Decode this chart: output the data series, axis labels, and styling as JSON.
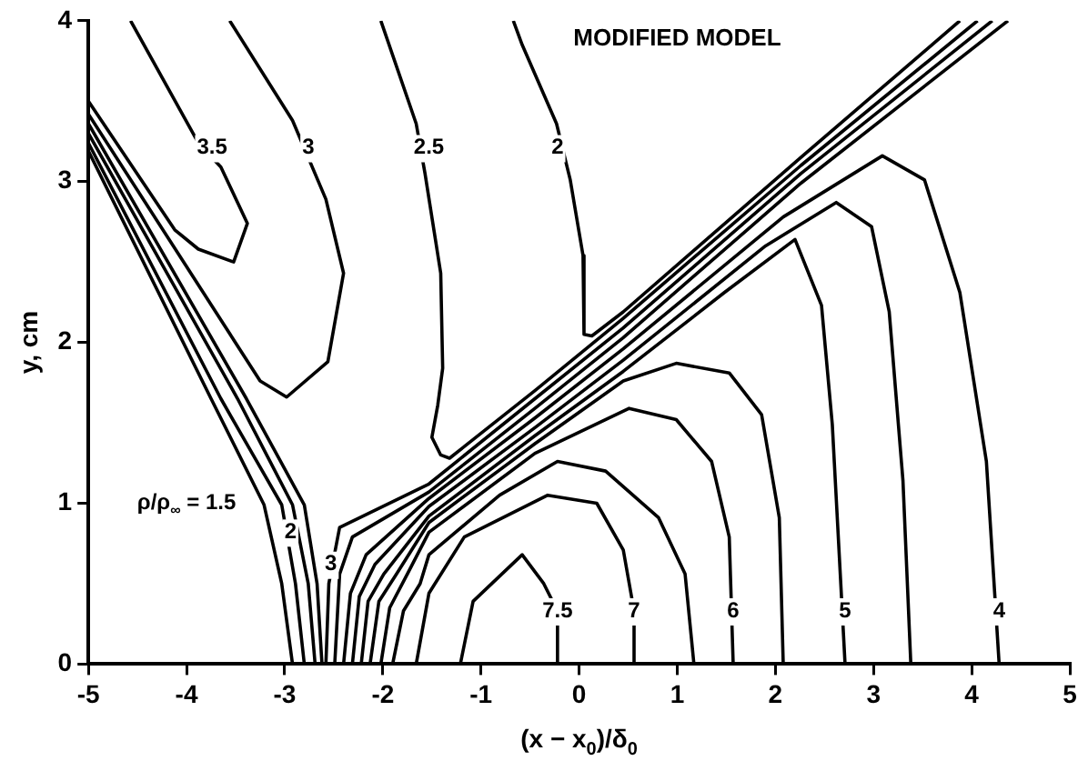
{
  "chart_data": {
    "type": "line",
    "title": "MODIFIED MODEL",
    "xlabel": "(x − x$_{0}$)/δ$_{0}$",
    "ylabel": "y, cm",
    "xlim": [
      -5,
      5
    ],
    "xticks": [
      -5,
      -4,
      -3,
      -2,
      -1,
      0,
      1,
      2,
      3,
      4,
      5
    ],
    "ylim": [
      0,
      4
    ],
    "yticks": [
      0,
      1,
      2,
      3,
      4
    ],
    "grid": false,
    "legend": false,
    "marker": "none",
    "line_style": "solid",
    "series": [
      {
        "color": "#000000",
        "x": [
          -5.0,
          -4.12,
          -3.88,
          -3.52,
          -3.38,
          -3.65,
          -3.88,
          -4.57
        ],
        "values": [
          3.5,
          2.7,
          2.58,
          2.5,
          2.74,
          3.09,
          3.24,
          4.0
        ]
      },
      {
        "color": "#000000",
        "x": [
          -5.0,
          -3.25,
          -2.98,
          -2.56,
          -2.4,
          -2.58,
          -2.92,
          -3.56
        ],
        "values": [
          3.42,
          1.76,
          1.66,
          1.88,
          2.43,
          2.89,
          3.38,
          4.0
        ]
      },
      {
        "color": "#000000",
        "x": [
          -5.0,
          -3.75,
          -3.21,
          -3.03,
          -2.92
        ],
        "values": [
          3.19,
          1.65,
          0.99,
          0.5,
          0
        ]
      },
      {
        "color": "#000000",
        "x": [
          -5.0,
          -3.65,
          -3.03,
          -2.89,
          -2.8
        ],
        "values": [
          3.24,
          1.65,
          0.99,
          0.5,
          0
        ]
      },
      {
        "color": "#000000",
        "x": [
          -5.0,
          -3.48,
          -2.92,
          -2.76,
          -2.69
        ],
        "values": [
          3.3,
          1.65,
          0.99,
          0.5,
          0
        ]
      },
      {
        "color": "#000000",
        "x": [
          -5.0,
          -3.39,
          -2.8,
          -2.67,
          -2.62
        ],
        "values": [
          3.36,
          1.65,
          0.99,
          0.5,
          0
        ]
      },
      {
        "color": "#000000",
        "x": [
          -2.02,
          -1.66,
          -1.57,
          -1.41,
          -1.39,
          -1.44,
          -1.5,
          -1.41,
          -1.32,
          -0.45,
          0.45,
          2.26,
          4.06
        ],
        "values": [
          4.0,
          3.36,
          3.05,
          2.43,
          1.84,
          1.61,
          1.41,
          1.3,
          1.28,
          1.7,
          2.15,
          3.1,
          4.0
        ]
      },
      {
        "color": "#000000",
        "x": [
          -0.67,
          -0.58,
          -0.23,
          -0.09,
          0.04,
          0.05,
          0.13,
          0.45,
          2.26,
          3.88
        ],
        "values": [
          4.0,
          3.85,
          3.36,
          3.01,
          2.54,
          2.05,
          2.04,
          2.19,
          3.15,
          4.0
        ]
      },
      {
        "color": "#000000",
        "x": [
          -2.58,
          -2.55,
          -2.44,
          -1.53,
          -0.45,
          0.45,
          2.26,
          4.21
        ],
        "values": [
          0,
          0.5,
          0.85,
          1.12,
          1.65,
          2.09,
          3.05,
          4.0
        ]
      },
      {
        "color": "#000000",
        "x": [
          -2.49,
          -2.44,
          -2.31,
          -1.53,
          -0.45,
          0.45,
          2.26,
          4.37
        ],
        "values": [
          0,
          0.56,
          0.79,
          1.07,
          1.59,
          2.03,
          2.99,
          4.0
        ]
      },
      {
        "color": "#000000",
        "x": [
          -2.4,
          -2.33,
          -2.17,
          -1.53,
          -0.45,
          0.45,
          2.08,
          3.09,
          3.52,
          3.88,
          4.15,
          4.28
        ],
        "values": [
          0,
          0.44,
          0.68,
          1.03,
          1.53,
          1.96,
          2.78,
          3.16,
          3.01,
          2.31,
          1.26,
          0
        ]
      },
      {
        "color": "#000000",
        "x": [
          -2.31,
          -2.24,
          -2.08,
          -1.53,
          -0.45,
          0.45,
          1.9,
          2.62,
          2.98,
          3.16,
          3.3,
          3.38
        ],
        "values": [
          0,
          0.42,
          0.62,
          0.98,
          1.47,
          1.89,
          2.6,
          2.87,
          2.72,
          2.19,
          1.14,
          0
        ]
      },
      {
        "color": "#000000",
        "x": [
          -2.22,
          -2.15,
          -1.99,
          -1.53,
          -0.45,
          0.45,
          1.48,
          2.2,
          2.47,
          2.58,
          2.71
        ],
        "values": [
          0,
          0.39,
          0.56,
          0.92,
          1.42,
          1.82,
          2.31,
          2.64,
          2.23,
          1.49,
          0
        ]
      },
      {
        "color": "#000000",
        "x": [
          -2.13,
          -2.04,
          -1.86,
          -1.53,
          -0.45,
          0.45,
          0.99,
          1.53,
          1.86,
          2.04,
          2.08
        ],
        "values": [
          0,
          0.39,
          0.56,
          0.88,
          1.37,
          1.76,
          1.87,
          1.81,
          1.55,
          0.91,
          0
        ]
      },
      {
        "color": "#000000",
        "x": [
          -2.02,
          -1.93,
          -1.75,
          -1.53,
          -0.45,
          0.51,
          0.99,
          1.35,
          1.53,
          1.57
        ],
        "values": [
          0,
          0.35,
          0.56,
          0.82,
          1.31,
          1.59,
          1.52,
          1.26,
          0.79,
          0
        ]
      },
      {
        "color": "#000000",
        "x": [
          -1.9,
          -1.79,
          -1.62,
          -1.53,
          -0.81,
          -0.22,
          0.27,
          0.81,
          1.08,
          1.17
        ],
        "values": [
          0,
          0.33,
          0.5,
          0.68,
          1.05,
          1.26,
          1.2,
          0.91,
          0.56,
          0
        ]
      },
      {
        "color": "#000000",
        "x": [
          -1.66,
          -1.53,
          -1.17,
          -0.32,
          0.18,
          0.45,
          0.56,
          0.56
        ],
        "values": [
          0,
          0.44,
          0.79,
          1.05,
          1.0,
          0.71,
          0.33,
          0
        ]
      },
      {
        "color": "#000000",
        "x": [
          -1.21,
          -1.08,
          -0.58,
          -0.36,
          -0.22,
          -0.22
        ],
        "values": [
          0,
          0.39,
          0.68,
          0.5,
          0.33,
          0
        ]
      }
    ],
    "annotations": [
      {
        "text": "3.5",
        "x": -3.74,
        "y": 3.21
      },
      {
        "text": "3",
        "x": -2.76,
        "y": 3.21
      },
      {
        "text": "2.5",
        "x": -1.53,
        "y": 3.21
      },
      {
        "text": "2",
        "x": -0.22,
        "y": 3.21
      },
      "ρ/ρ$_{∞}$ = 1.5",
      {
        "text": "2",
        "x": -2.94,
        "y": 0.82
      },
      {
        "text": "3",
        "x": -2.53,
        "y": 0.62
      },
      {
        "text": "7.5",
        "x": -0.22,
        "y": 0.33
      },
      {
        "text": "7",
        "x": 0.56,
        "y": 0.33
      },
      {
        "text": "6",
        "x": 1.57,
        "y": 0.33
      },
      {
        "text": "5",
        "x": 2.71,
        "y": 0.33
      },
      {
        "text": "4",
        "x": 4.28,
        "y": 0.33
      }
    ]
  }
}
